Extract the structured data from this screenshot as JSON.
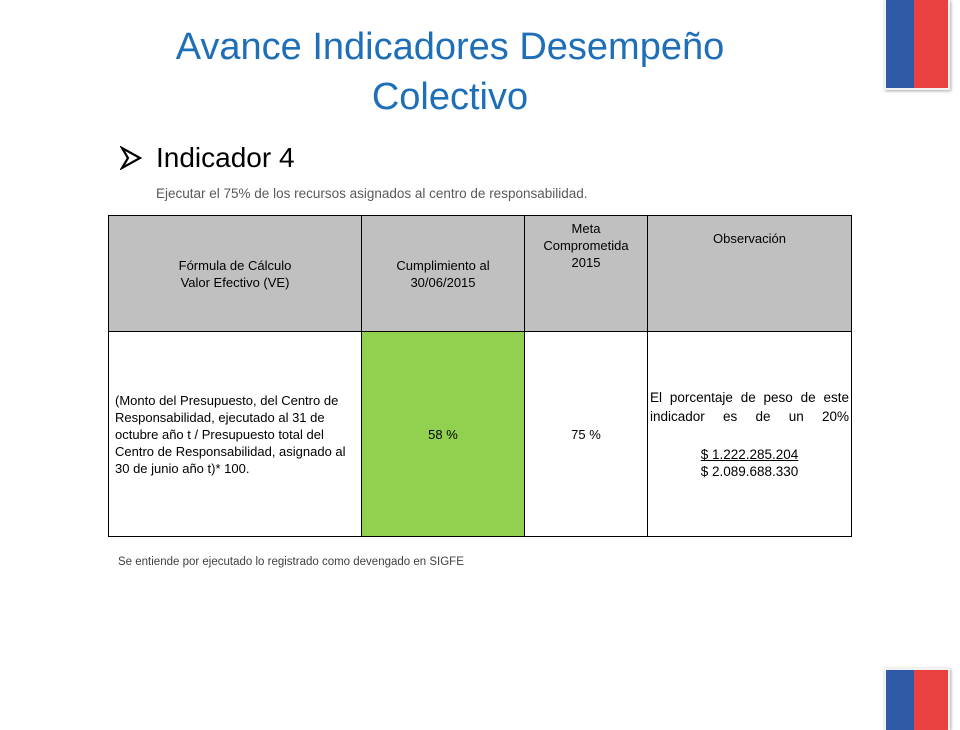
{
  "title": "Avance Indicadores Desempeño Colectivo",
  "indicator": {
    "label": "Indicador 4",
    "description": "Ejecutar el 75% de los recursos asignados al centro de responsabilidad."
  },
  "table": {
    "headers": {
      "formula_line1": "Fórmula de Cálculo",
      "formula_line2": "Valor Efectivo  (VE)",
      "cumplimiento_line1": "Cumplimiento al",
      "cumplimiento_line2": "30/06/2015",
      "meta_line1": "Meta",
      "meta_line2": "Comprometida",
      "meta_line3": "2015",
      "observacion": "Observación"
    },
    "row": {
      "formula": "(Monto del Presupuesto, del Centro de Responsabilidad, ejecutado al 31 de octubre año t / Presupuesto total del Centro de Responsabilidad, asignado al 30 de junio año t)* 100.",
      "cumplimiento": "58 %",
      "meta": "75 %",
      "observacion_text": "El porcentaje de peso de este indicador es de un 20%",
      "numerator": "$ 1.222.285.204",
      "denominator": "$ 2.089.688.330"
    }
  },
  "footnote": "Se entiende por ejecutado lo registrado como devengado en SIGFE",
  "colors": {
    "title": "#1f6fb8",
    "header_bg": "#c0c0c0",
    "cumplimiento_bg": "#92d050",
    "flag_blue": "#2f5aa8",
    "flag_red": "#e8413f"
  }
}
